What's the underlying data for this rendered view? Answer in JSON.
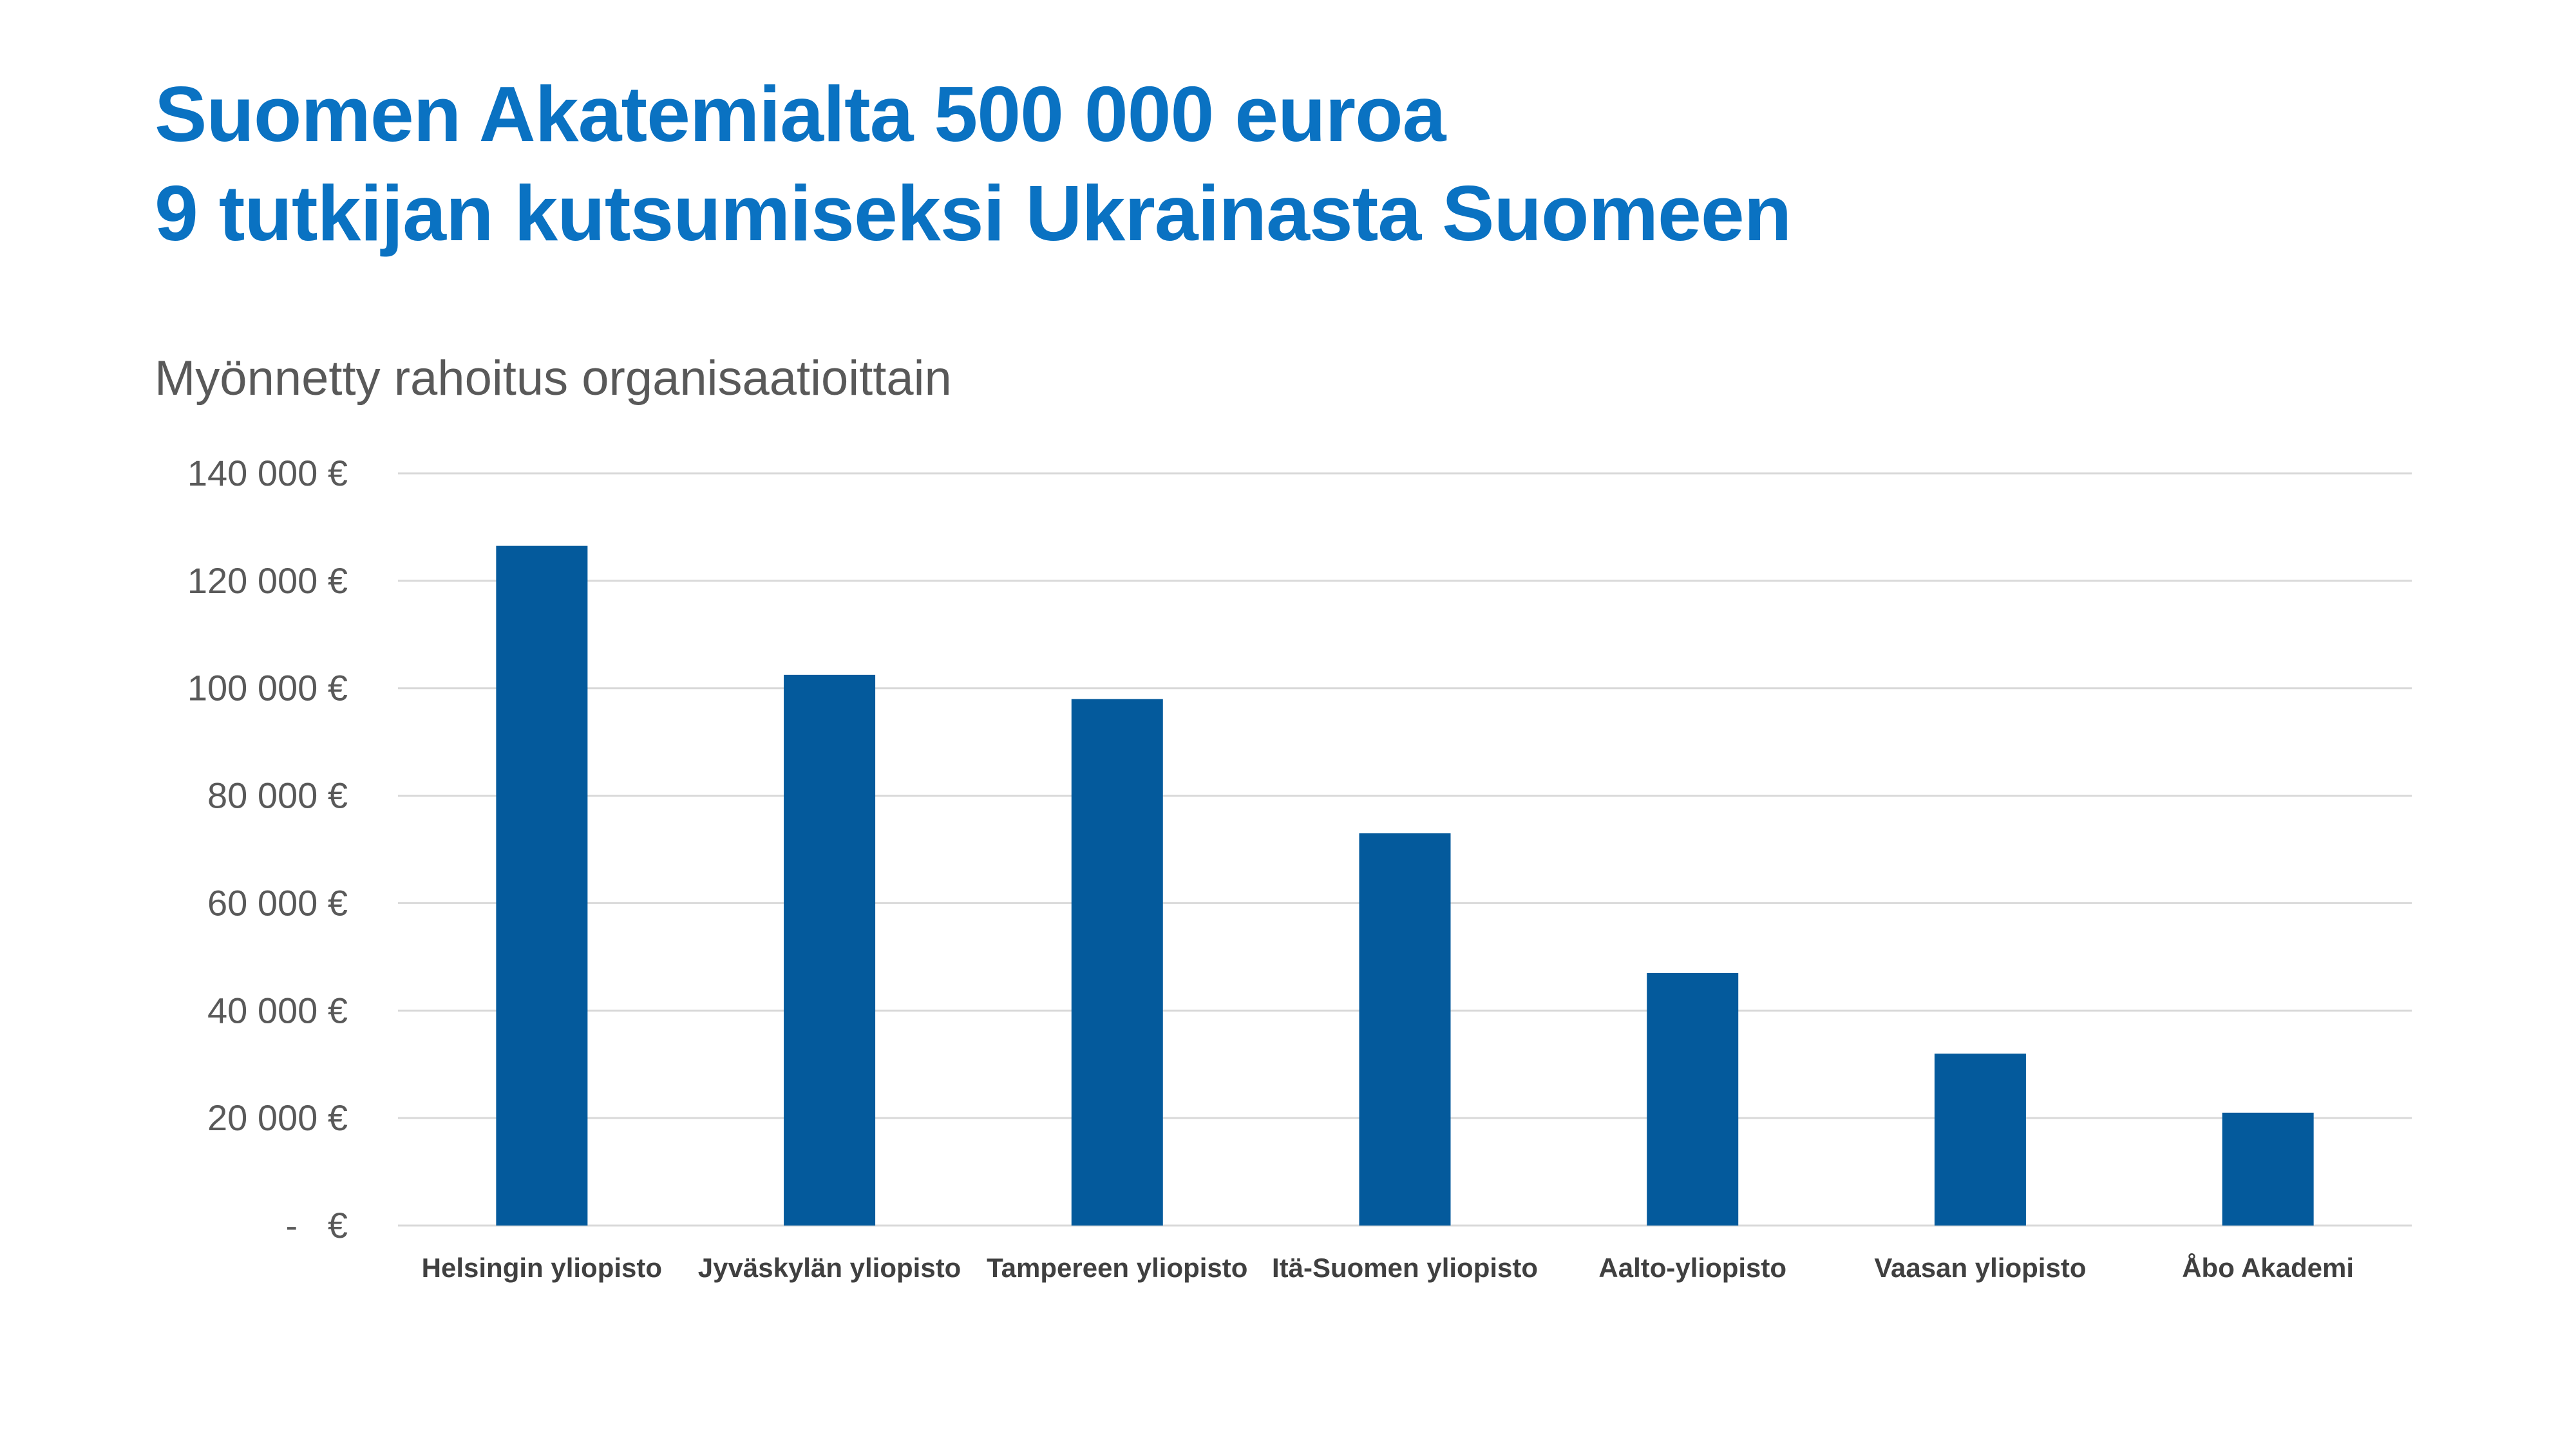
{
  "title_line_1": "Suomen Akatemialta 500 000 euroa",
  "title_line_2": "9 tutkijan kutsumiseksi Ukrainasta Suomeen",
  "colors": {
    "title": "#0a72c2",
    "bar": "#045a9c",
    "gridline": "#d9d9d9",
    "text": "#595959"
  },
  "chart_data": {
    "type": "bar",
    "title": "Myönnetty rahoitus organisaatioittain",
    "xlabel": "",
    "ylabel": "",
    "categories": [
      "Helsingin yliopisto",
      "Jyväskylän yliopisto",
      "Tampereen yliopisto",
      "Itä-Suomen yliopisto",
      "Aalto-yliopisto",
      "Vaasan yliopisto",
      "Åbo Akademi"
    ],
    "values": [
      126500,
      102500,
      98000,
      73000,
      47000,
      32000,
      21000
    ],
    "ylim": [
      0,
      140000
    ],
    "yticks": [
      0,
      20000,
      40000,
      60000,
      80000,
      100000,
      120000,
      140000
    ],
    "ytick_labels": [
      "-   €",
      "20 000 €",
      "40 000 €",
      "60 000 €",
      "80 000 €",
      "100 000 €",
      "120 000 €",
      "140 000 €"
    ],
    "grid": true,
    "legend": "none"
  }
}
